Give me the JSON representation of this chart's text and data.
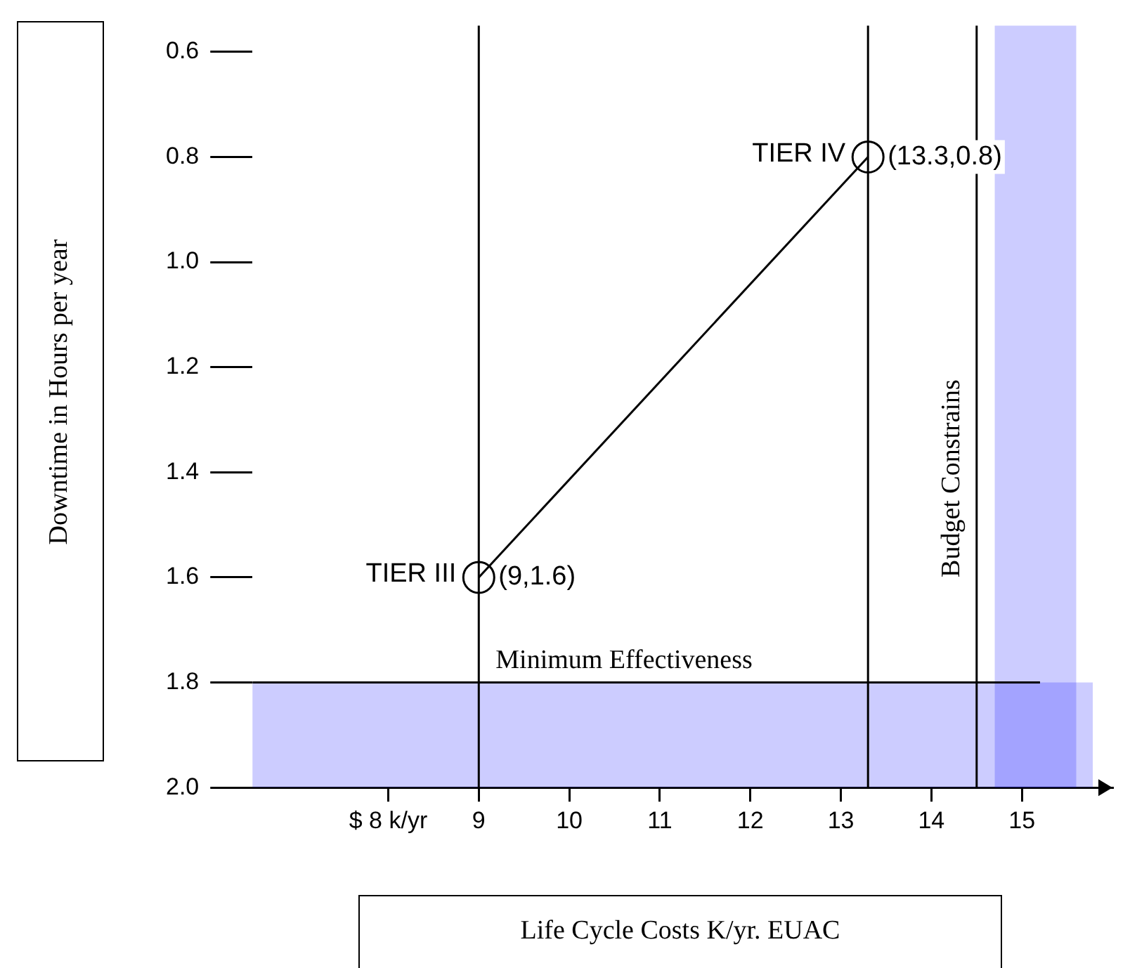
{
  "chart_data": {
    "type": "line",
    "xlabel": "Life Cycle Costs K/yr.  EUAC",
    "ylabel": "Downtime in Hours per year",
    "x": [
      9,
      13.3
    ],
    "series": [
      {
        "color": "#000000",
        "values": [
          1.6,
          0.8
        ],
        "value_labels": [
          "(9,1.6)",
          "(13.3,0.8)"
        ]
      }
    ],
    "xlim": [
      6.5,
      16
    ],
    "ylim": [
      2.0,
      0.55
    ],
    "xticks": [
      {
        "value": 8,
        "label": "$ 8 k/yr"
      },
      9,
      10,
      11,
      12,
      13,
      14,
      15
    ],
    "yticks": [
      0.6,
      0.8,
      {
        "value": 1.0,
        "label": "1.0"
      },
      1.2,
      1.4,
      1.6,
      1.8,
      {
        "value": 2.0,
        "label": "2.0"
      }
    ],
    "annotations": [
      {
        "text": "TIER III",
        "x": 9,
        "y": 1.6
      },
      {
        "text": "TIER IV",
        "x": 13.3,
        "y": 0.8
      }
    ],
    "ref_lines": [
      {
        "axis": "x",
        "value": 9,
        "label": null
      },
      {
        "axis": "x",
        "value": 13.3,
        "label": null
      },
      {
        "axis": "x",
        "value": 14.5,
        "label": "Budget Constrains"
      },
      {
        "axis": "y",
        "value": 1.8,
        "label": "Minimum Effectiveness"
      }
    ],
    "bands": [
      {
        "axis": "y",
        "from": 1.8,
        "to": 2.0,
        "color": "#0000ff"
      },
      {
        "axis": "x",
        "from": 14.7,
        "to": 15.6,
        "color": "#0000ff"
      }
    ],
    "grid": false,
    "legend": false,
    "marker": "circle",
    "line_style": "solid"
  }
}
